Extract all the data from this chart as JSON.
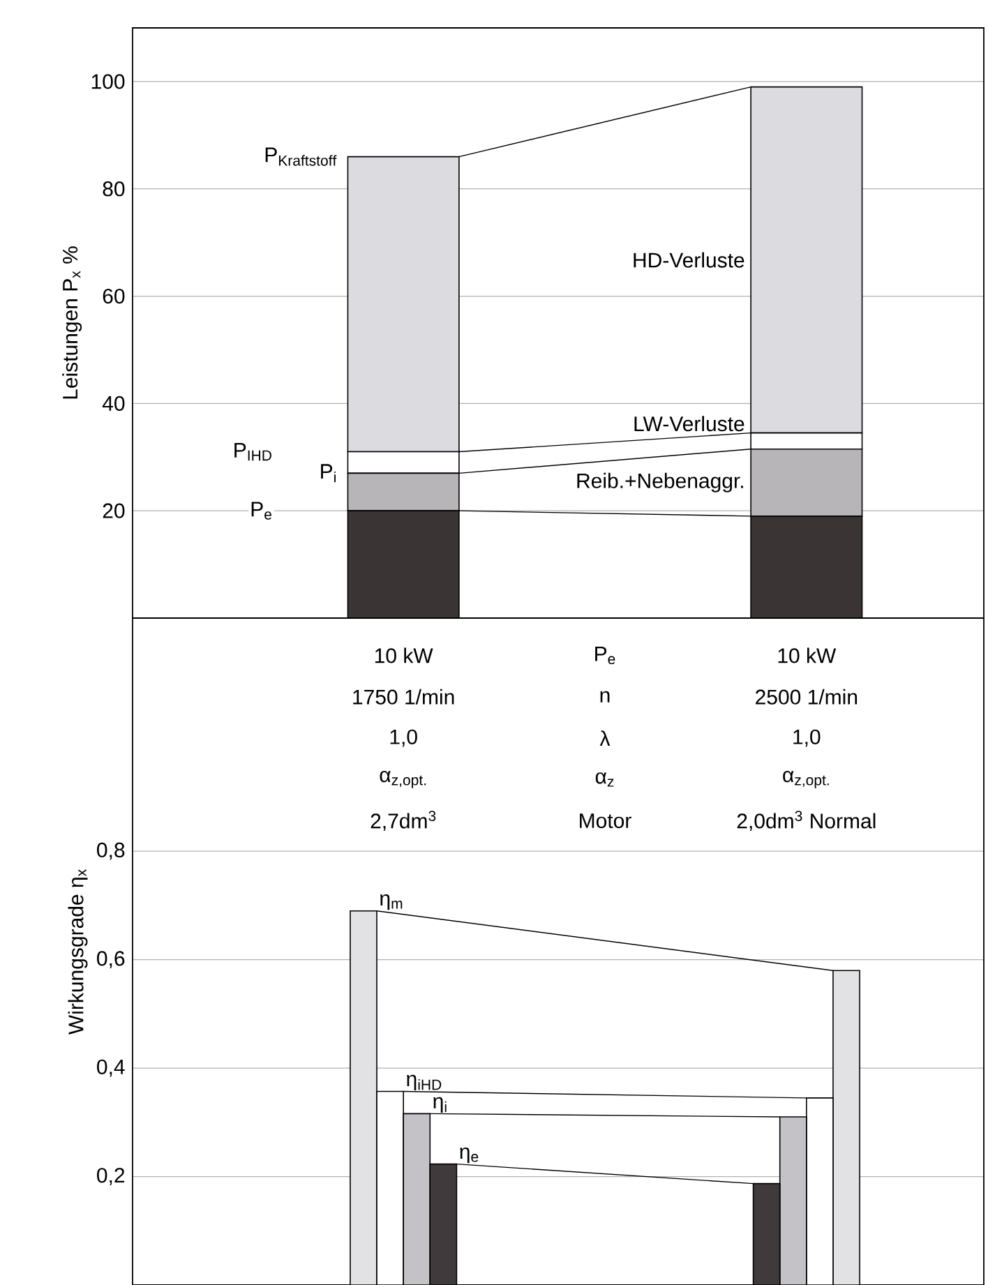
{
  "chart_data": [
    {
      "type": "bar",
      "stacked": true,
      "categories": [
        null,
        null
      ],
      "ylabel": "Leistungen P$_{x}$ %",
      "ylim": [
        0,
        110
      ],
      "yticks": [
        20,
        40,
        60,
        80,
        100
      ],
      "grid": "y",
      "tick_labels": "y",
      "series": [
        {
          "color": "#3a3434",
          "values": [
            20,
            19
          ]
        },
        {
          "name": "Reib.+Nebenaggr.",
          "color": "#b8b5b9",
          "values": [
            7,
            12.5
          ]
        },
        {
          "name": "LW-Verluste",
          "color": "#ffffff",
          "values": [
            4,
            3
          ]
        },
        {
          "name": "HD-Verluste",
          "color": "#dcdce0",
          "values": [
            55,
            64.5
          ]
        }
      ],
      "annotations": [
        "\\mathrm{P}_{\\mathrm{Kraftstoff}}",
        "P$_{IHD}$",
        "P$_{i}$",
        "P$_{e}$"
      ]
    },
    {
      "type": "bar",
      "categories": [
        null,
        null
      ],
      "ylabel": "Wirkungsgrade η$_{x}$",
      "ylim": [
        0,
        1.23
      ],
      "yticks": [
        {
          "value": 0.2,
          "label": "0,2"
        },
        {
          "value": 0.4,
          "label": "0,4"
        },
        {
          "value": 0.6,
          "label": "0,6"
        },
        {
          "value": 0.8,
          "label": "0,8"
        }
      ],
      "grid": "y",
      "tick_labels": "y",
      "series": [
        {
          "name": "η$_{m}$",
          "color": "#e2e2e4",
          "values": [
            0.69,
            0.58
          ]
        },
        {
          "name": "η$_{iHD}$",
          "color": "#ffffff",
          "values": [
            0.357,
            0.345
          ]
        },
        {
          "name": "η$_{i}$",
          "color": "#c4c2c6",
          "values": [
            0.316,
            0.31
          ]
        },
        {
          "name": "η$_{e}$",
          "color": "#403a3c",
          "values": [
            0.223,
            0.187
          ]
        }
      ],
      "annotations": [
        "10 kW",
        "P$_{e}$",
        "10 kW",
        "1750 1/min",
        "n",
        "2500 1/min",
        "1,0",
        "λ",
        "1,0",
        "α$_{z,opt.}$",
        "α$_{z}$",
        "α$_{z,opt.}$",
        "2,7dm$^{3}$",
        "Motor",
        "2,0dm$^{3}$ Normal"
      ]
    }
  ]
}
